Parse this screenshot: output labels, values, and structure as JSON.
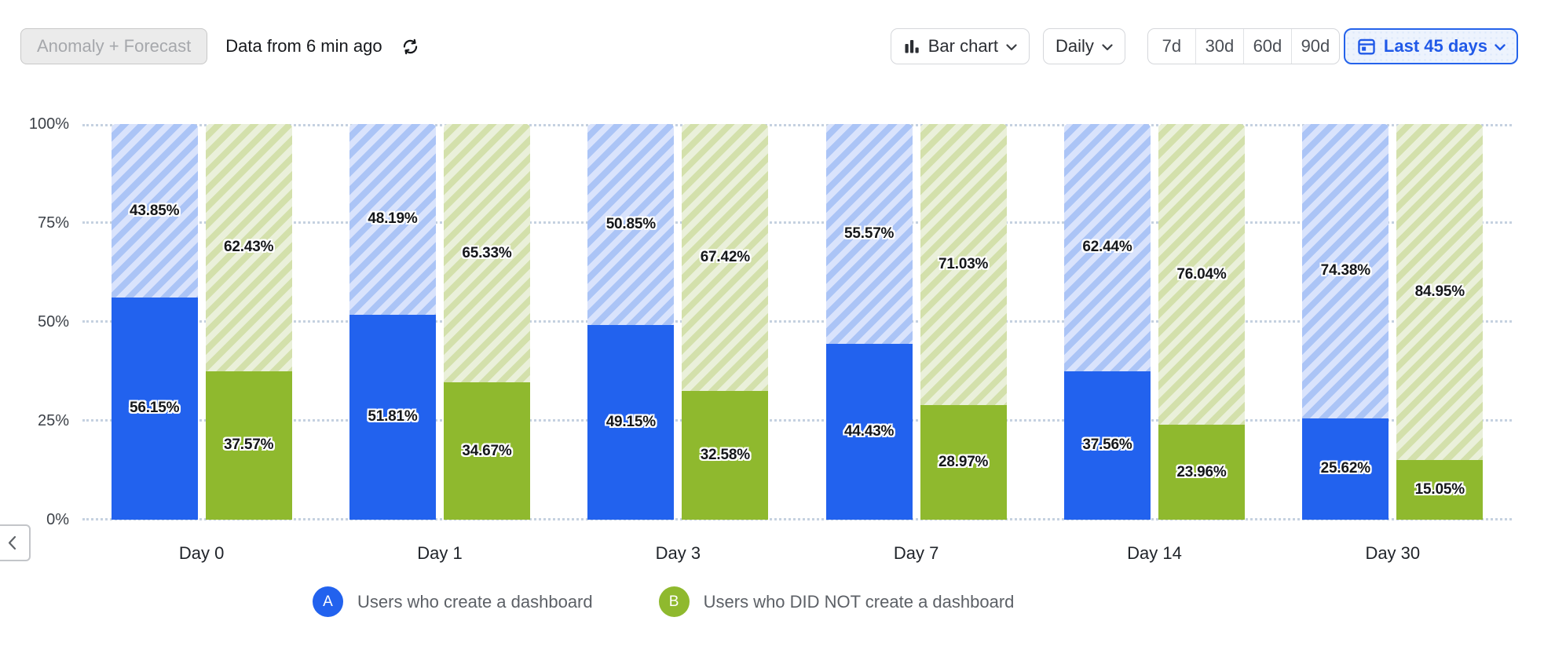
{
  "header": {
    "anomaly_button": "Anomaly + Forecast",
    "freshness": "Data from 6 min ago",
    "chart_type_label": "Bar chart",
    "granularity_label": "Daily",
    "presets": [
      "7d",
      "30d",
      "60d",
      "90d"
    ],
    "date_range_label": "Last 45 days"
  },
  "chart_data": {
    "type": "bar",
    "subtype": "grouped-stacked-percent",
    "categories": [
      "Day 0",
      "Day 1",
      "Day 3",
      "Day 7",
      "Day 14",
      "Day 30"
    ],
    "y_ticks": [
      "100%",
      "75%",
      "50%",
      "25%",
      "0%"
    ],
    "ylim": [
      0,
      100
    ],
    "grid": "dotted-horizontal",
    "legend_position": "bottom",
    "series": [
      {
        "letter": "A",
        "name": "Users who create a dashboard",
        "solid_color": "#2262ee",
        "hatch_bg": "#d9e3fc",
        "hatch_stripe": "#abc4f6",
        "solid_values": [
          56.15,
          51.81,
          49.15,
          44.43,
          37.56,
          25.62
        ],
        "hatched_values": [
          43.85,
          48.19,
          50.85,
          55.57,
          62.44,
          74.38
        ]
      },
      {
        "letter": "B",
        "name": "Users who DID NOT create a dashboard",
        "solid_color": "#8fb92e",
        "hatch_bg": "#eaf0da",
        "hatch_stripe": "#d3e0ab",
        "solid_values": [
          37.57,
          34.67,
          32.58,
          28.97,
          23.96,
          15.05
        ],
        "hatched_values": [
          62.43,
          65.33,
          67.42,
          71.03,
          76.04,
          84.95
        ]
      }
    ]
  },
  "legend": {
    "items": [
      {
        "letter": "A",
        "label": "Users who create a dashboard",
        "color": "#2262ee"
      },
      {
        "letter": "B",
        "label": "Users who DID NOT create a dashboard",
        "color": "#8fb92e"
      }
    ]
  }
}
